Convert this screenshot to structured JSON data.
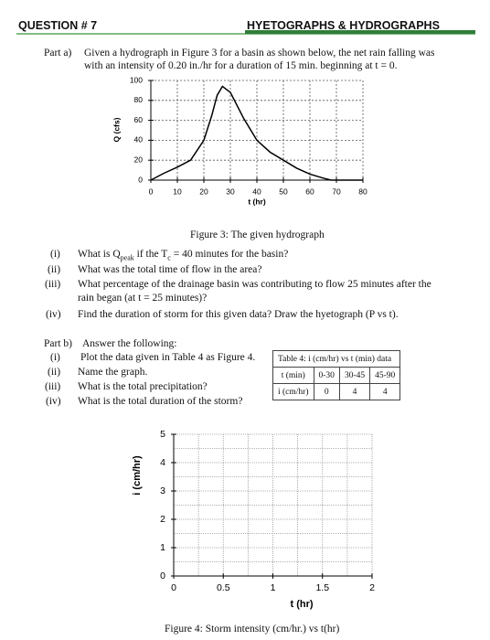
{
  "header": {
    "left": "QUESTION # 7",
    "right": "HYETOGRAPHS & HYDROGRAPHS"
  },
  "part_a": {
    "label": "Part a)",
    "lines": [
      "Given a hydrograph in Figure 3 for a basin as shown below, the net rain falling was",
      "with an intensity of 0.20 in./hr for a duration of 15 min. beginning at t = 0."
    ],
    "figure_caption": "Figure 3: The given hydrograph",
    "questions": [
      {
        "num": "(i)",
        "text": [
          "What is Q",
          "peak",
          " if the T",
          "c",
          " = 40 minutes for the basin?"
        ]
      },
      {
        "num": "(ii)",
        "text": [
          "What was the total time of flow in the area?"
        ]
      },
      {
        "num": "(iii)",
        "text": [
          "What percentage of the drainage basin was contributing to flow 25 minutes after the",
          "rain began (at t = 25 minutes)?"
        ]
      },
      {
        "num": "(iv)",
        "text": [
          "Find the duration of storm for this given data? Draw the hyetograph (P vs t)."
        ]
      }
    ]
  },
  "part_b": {
    "label": "Part b)",
    "intro": "Answer the following:",
    "questions": [
      {
        "num": "(i)",
        "text": "Plot the data given in Table 4 as Figure 4."
      },
      {
        "num": "(ii)",
        "text": "Name the graph."
      },
      {
        "num": "(iii)",
        "text": "What is the total precipitation?"
      },
      {
        "num": "(iv)",
        "text": "What is the total duration of the storm?"
      }
    ],
    "figure_caption": "Figure 4: Storm intensity (cm/hr.) vs t(hr)"
  },
  "table": {
    "caption": "Table 4: i (cm/hr) vs t (min) data",
    "rows": [
      [
        "t (min)",
        "0-30",
        "30-45",
        "45-90"
      ],
      [
        "i (cm/hr)",
        "0",
        "4",
        "4"
      ]
    ]
  },
  "chart_data": [
    {
      "type": "line",
      "xlabel": "t (hr)",
      "ylabel": "Q (cfs)",
      "x": [
        0,
        5,
        10,
        15,
        20,
        23,
        25,
        27,
        30,
        35,
        40,
        45,
        50,
        55,
        60,
        65,
        68,
        70,
        75,
        80
      ],
      "series": [
        {
          "color": "#000000",
          "values": [
            0,
            7,
            13,
            20,
            40,
            65,
            85,
            94,
            88,
            62,
            40,
            28,
            20,
            12,
            6,
            2,
            0,
            0,
            0,
            0
          ]
        }
      ],
      "xlim": [
        0,
        80
      ],
      "ylim": [
        0,
        100
      ],
      "xticks": [
        0,
        10,
        20,
        30,
        40,
        50,
        60,
        70,
        80
      ],
      "yticks": [
        0,
        20,
        40,
        60,
        80,
        100
      ],
      "grid": true
    },
    {
      "type": "line",
      "xlabel": "t (hr)",
      "ylabel": "i (cm/hr)",
      "xlim": [
        0,
        2
      ],
      "ylim": [
        0,
        5
      ],
      "xticks": [
        0,
        0.5,
        1,
        1.5,
        2
      ],
      "yticks": [
        0,
        1,
        2,
        3,
        4,
        5
      ],
      "grid": true
    }
  ]
}
